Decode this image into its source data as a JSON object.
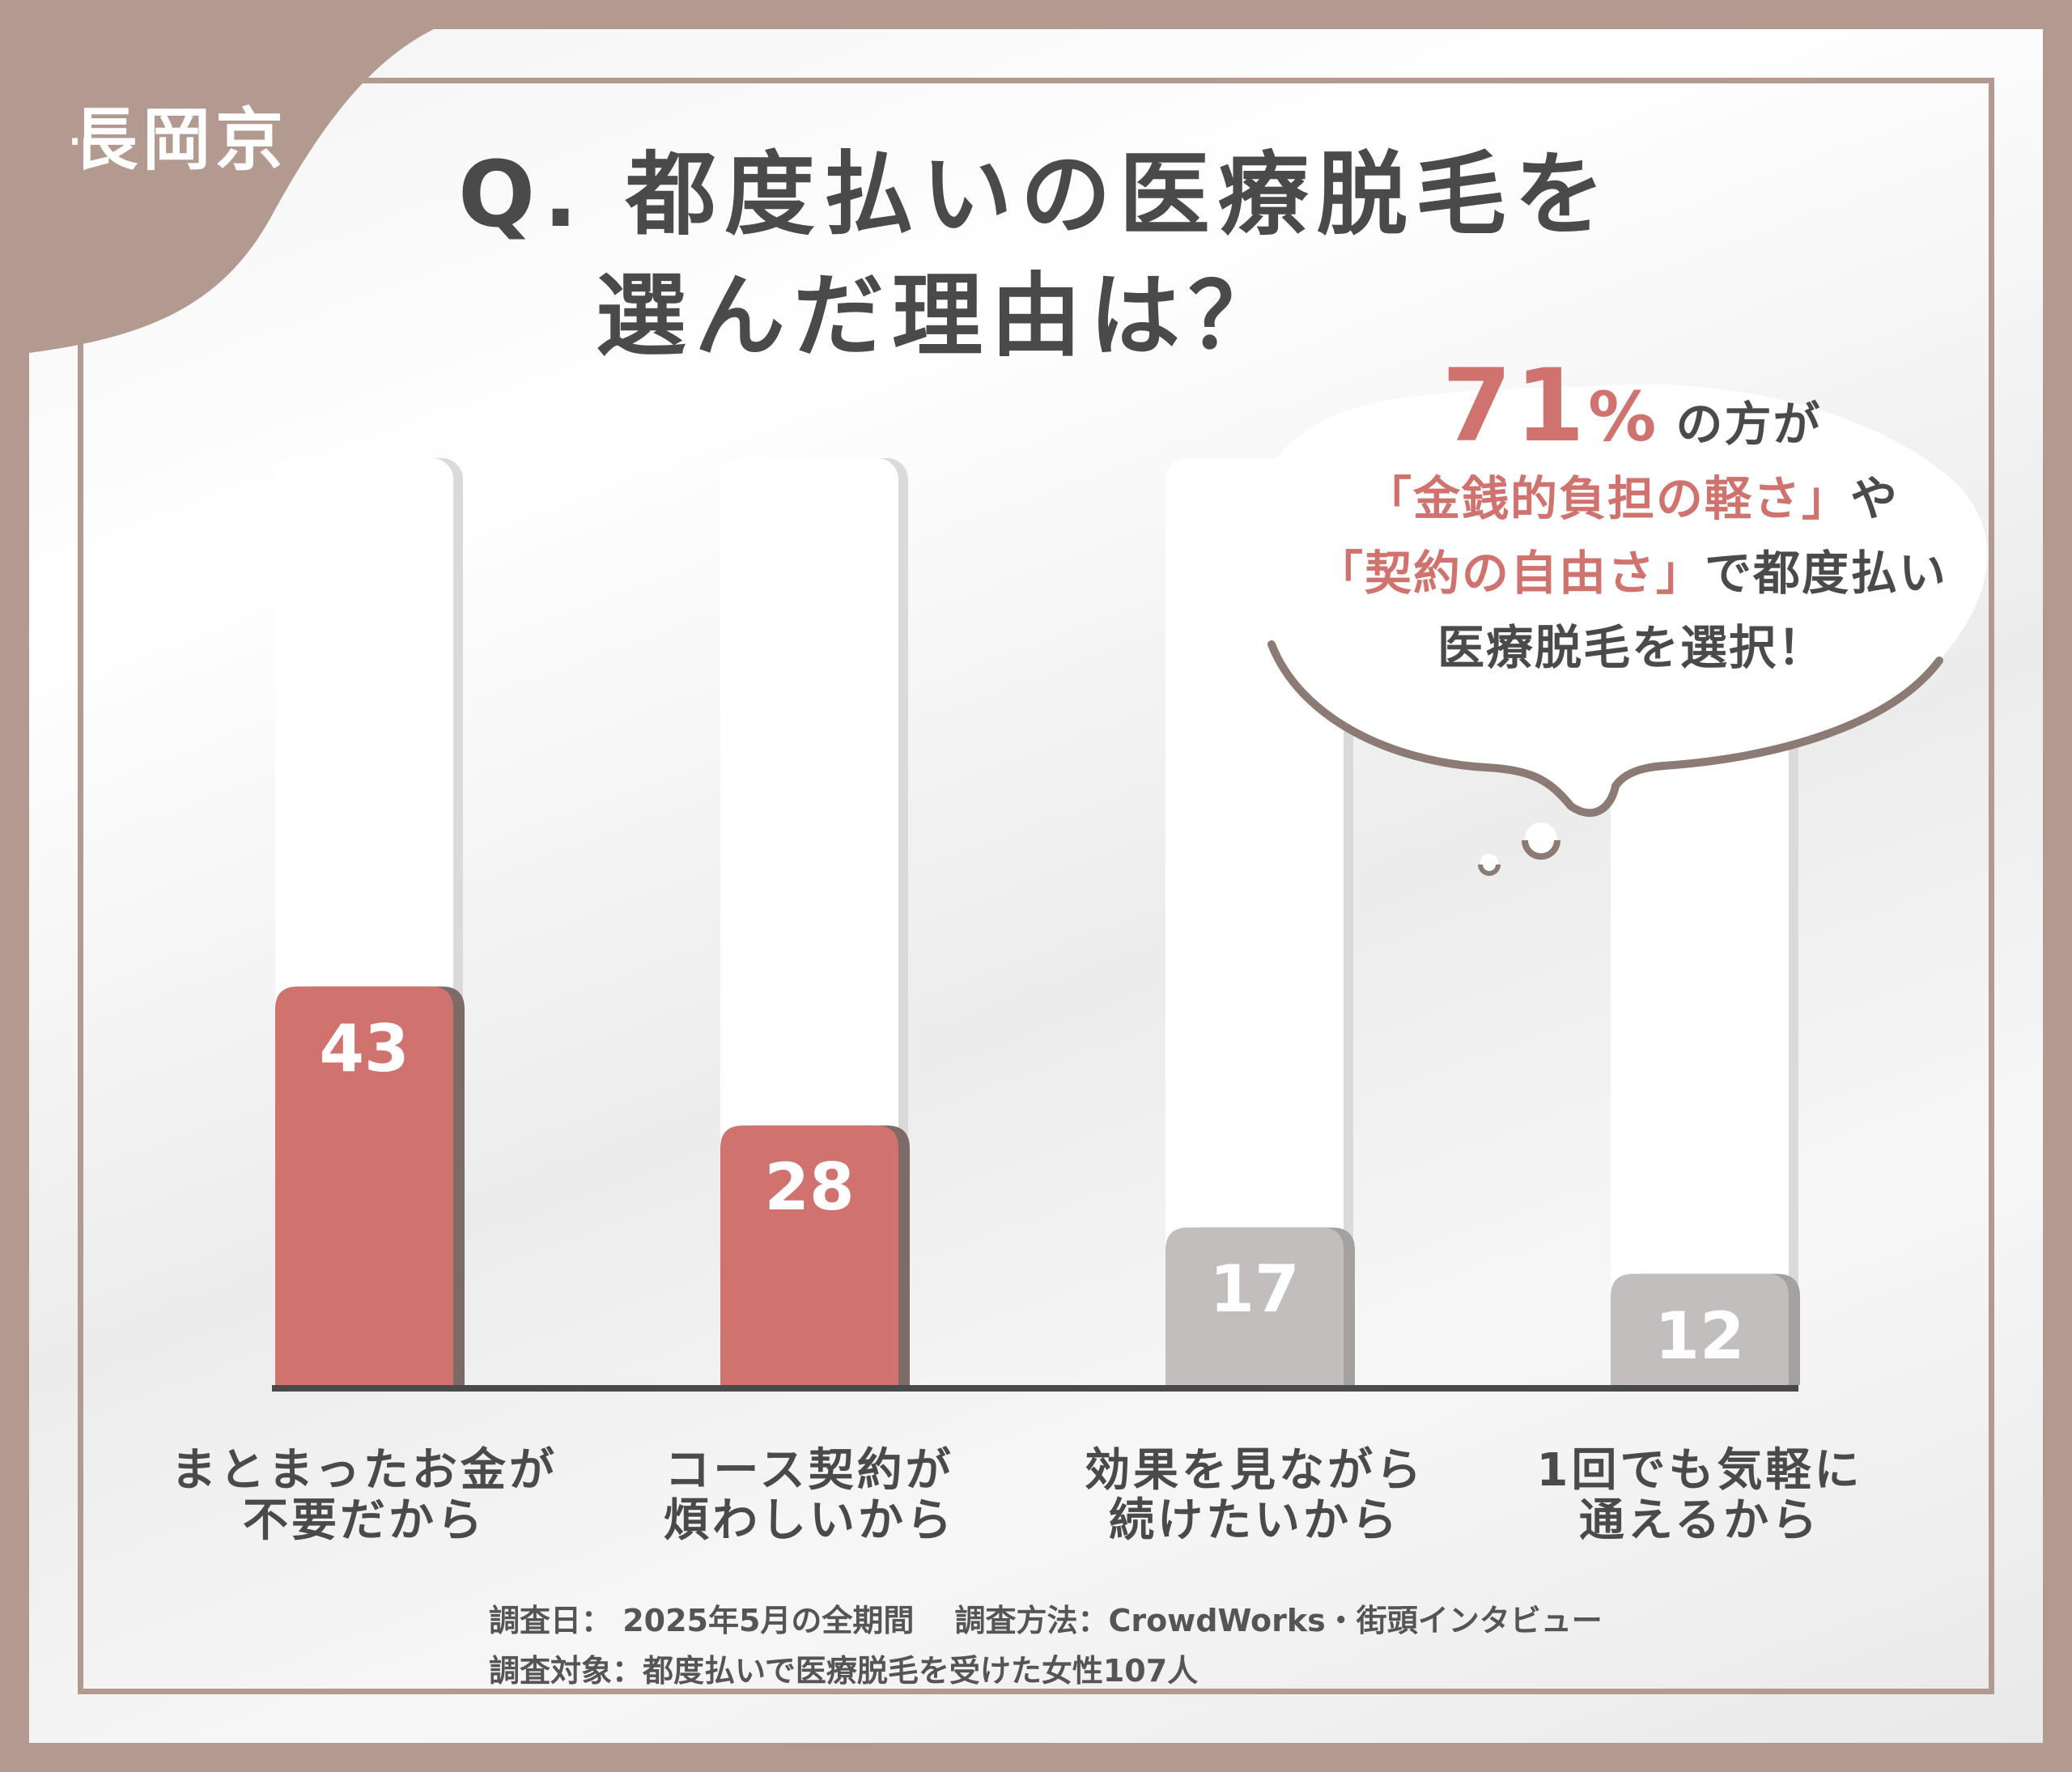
{
  "region": "長岡京",
  "title": {
    "line1": "Q. 都度払いの医療脱毛を",
    "line2": "選んだ理由は？"
  },
  "callout": {
    "percent": "71",
    "percent_sign": "%",
    "after_percent": "の方が",
    "line2_highlight": "「金銭的負担の軽さ」",
    "line2_rest": "や",
    "line3_highlight": "「契約の自由さ」",
    "line3_rest": "で都度払い",
    "line4": "医療脱毛を選択！"
  },
  "chart_data": {
    "type": "bar",
    "categories": [
      "まとまったお金が\n不要だから",
      "コース契約が\n煩わしいから",
      "効果を見ながら\n続けたいから",
      "1回でも気軽に\n通えるから"
    ],
    "values": [
      43,
      28,
      17,
      12
    ],
    "value_labels": [
      "43",
      "28",
      "17",
      "12"
    ],
    "ylim": [
      0,
      100
    ],
    "grid": false,
    "colors": {
      "highlight": "#d0736f",
      "muted": "#c1bebd",
      "track": "#ffffff"
    },
    "highlighted": [
      true,
      true,
      false,
      false
    ]
  },
  "footer": {
    "date": "調査日： 2025年5月の全期間",
    "method": "調査方法：CrowdWorks・街頭インタビュー",
    "target": "調査対象：都度払いで医療脱毛を受けた女性107人"
  }
}
